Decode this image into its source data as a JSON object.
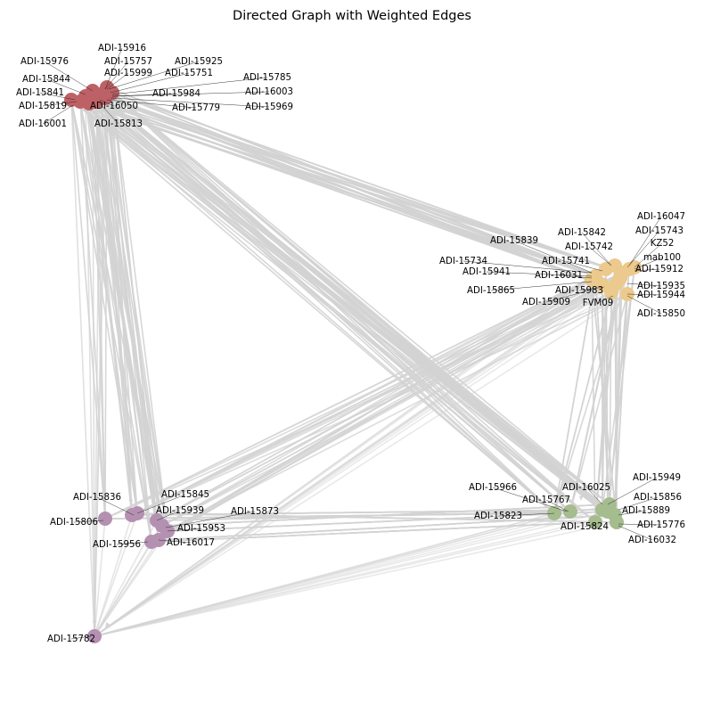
{
  "figure": {
    "title": "Directed Graph with Weighted Edges",
    "edge_color": "#d3d3d3"
  },
  "groups": [
    {
      "id": "red",
      "color": "#be6166"
    },
    {
      "id": "yellow",
      "color": "#ecc98c"
    },
    {
      "id": "purple",
      "color": "#b490b1"
    },
    {
      "id": "green",
      "color": "#a5bc8e"
    },
    {
      "id": "single",
      "color": "#b490b1"
    }
  ],
  "labels": {
    "red": [
      "ADI-15916",
      "ADI-15757",
      "ADI-15976",
      "ADI-15925",
      "ADI-15999",
      "ADI-15751",
      "ADI-15785",
      "ADI-15844",
      "ADI-15841",
      "ADI-15984",
      "ADI-16003",
      "ADI-15819",
      "ADI-16050",
      "ADI-15779",
      "ADI-15969",
      "ADI-16001",
      "ADI-15813"
    ],
    "yellow": [
      "ADI-16047",
      "ADI-15743",
      "ADI-15842",
      "KZ52",
      "ADI-15839",
      "ADI-15742",
      "mab100",
      "ADI-15734",
      "ADI-15741",
      "ADI-15912",
      "ADI-15941",
      "ADI-16031",
      "ADI-15935",
      "ADI-15865",
      "ADI-15983",
      "ADI-15944",
      "ADI-15909",
      "FVM09",
      "ADI-15850"
    ],
    "purple": [
      "ADI-15836",
      "ADI-15845",
      "ADI-15939",
      "ADI-15873",
      "ADI-15806",
      "ADI-15953",
      "ADI-15956",
      "ADI-16017"
    ],
    "green": [
      "ADI-15949",
      "ADI-15966",
      "ADI-16025",
      "ADI-15856",
      "ADI-15767",
      "ADI-15889",
      "ADI-15823",
      "ADI-15776",
      "ADI-15824",
      "ADI-16032"
    ],
    "single": [
      "ADI-15782"
    ]
  }
}
